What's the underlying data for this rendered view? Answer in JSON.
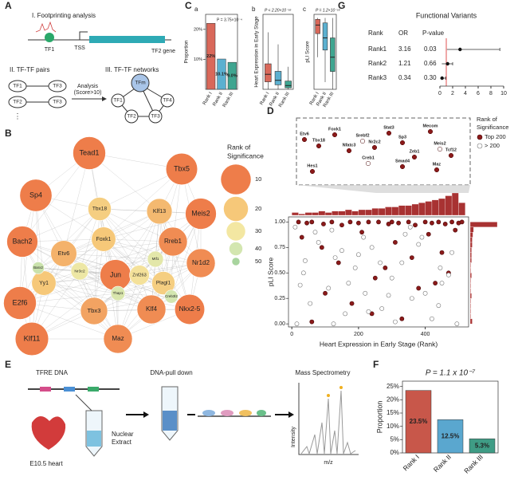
{
  "panel_labels": [
    "A",
    "B",
    "C",
    "D",
    "E",
    "F",
    "G"
  ],
  "footprinting": {
    "title": "I. Footprinting analysis",
    "tf": "TF1",
    "tss": "TSS",
    "gene": "TF2 gene"
  },
  "pairs": {
    "title": "II. TF-TF pairs",
    "rows": [
      [
        "TF1",
        "TF3"
      ],
      [
        "TF2",
        "TF3"
      ]
    ],
    "more": "⋮",
    "analysis": [
      "Analysis",
      "(Score>10)"
    ]
  },
  "networks": {
    "title": "III. TF-TF networks",
    "nodes": [
      "TFm",
      "TF1",
      "TF4",
      "TF2",
      "TF3"
    ]
  },
  "network": {
    "nodes": [
      {
        "label": "Tead1",
        "rank": 5
      },
      {
        "label": "Tbx5",
        "rank": 7
      },
      {
        "label": "Sp4",
        "rank": 6
      },
      {
        "label": "Klf13",
        "rank": 18
      },
      {
        "label": "Tbx18",
        "rank": 22
      },
      {
        "label": "Meis2",
        "rank": 8
      },
      {
        "label": "Bach2",
        "rank": 8
      },
      {
        "label": "Foxk1",
        "rank": 20
      },
      {
        "label": "Rreb1",
        "rank": 12
      },
      {
        "label": "Etv6",
        "rank": 17
      },
      {
        "label": "Yy1",
        "rank": 20
      },
      {
        "label": "Jun",
        "rank": 8
      },
      {
        "label": "Znf263",
        "rank": 28
      },
      {
        "label": "Nr3c2",
        "rank": 32
      },
      {
        "label": "Nr1d2",
        "rank": 12
      },
      {
        "label": "Plagl1",
        "rank": 22
      },
      {
        "label": "Mtf1",
        "rank": 35
      },
      {
        "label": "E2f6",
        "rank": 5
      },
      {
        "label": "Tbx3",
        "rank": 15
      },
      {
        "label": "Klf4",
        "rank": 12
      },
      {
        "label": "Nkx2-5",
        "rank": 10
      },
      {
        "label": "Klf11",
        "rank": 4
      },
      {
        "label": "Maz",
        "rank": 12
      },
      {
        "label": "Thap1",
        "rank": 38
      },
      {
        "label": "Creb3l2",
        "rank": 40
      },
      {
        "label": "Barx2",
        "rank": 42
      }
    ],
    "legend": {
      "title": [
        "Rank of",
        "Significance"
      ],
      "ranks": [
        10,
        20,
        30,
        40,
        50
      ],
      "colors": [
        "#ee7d4a",
        "#f6c879",
        "#f3e7a2",
        "#d3e6b0",
        "#a8d49e"
      ]
    }
  },
  "pulldown": {
    "dna": "TFRE DNA",
    "heart": "E10.5 heart",
    "extract": [
      "Nuclear",
      "Extract"
    ],
    "pull": "DNA-pull down",
    "ms": "Mass Spectrometry",
    "ylabel": "Intensity",
    "xlabel": "m/z"
  },
  "chart_data": [
    {
      "type": "bar",
      "label": "a",
      "ylabel": "Proportion",
      "annotation": "P = 3.75×10⁻⁴",
      "categories": [
        "Rank I",
        "Rank II",
        "Rank III"
      ],
      "values": [
        22,
        10.1,
        9.0
      ],
      "value_labels": [
        "22%",
        "10.1%",
        "9.0%"
      ],
      "colors": [
        "#d9685a",
        "#5bb0d0",
        "#3fa590"
      ],
      "ylim": [
        0,
        25
      ],
      "yticks": [
        {
          "value": 10,
          "label": "10%"
        },
        {
          "value": 20,
          "label": "20%"
        }
      ]
    },
    {
      "type": "box",
      "label": "b",
      "ylabel": "Heart Expression in Early Stage",
      "annotation": "P < 2.20×10⁻¹⁶",
      "categories": [
        "Rank I",
        "Rank II",
        "Rank III"
      ],
      "boxes": [
        {
          "min": 0,
          "q1": 50,
          "median": 100,
          "q3": 170,
          "max": 380
        },
        {
          "min": 0,
          "q1": 30,
          "median": 60,
          "q3": 120,
          "max": 300
        },
        {
          "min": 0,
          "q1": 10,
          "median": 25,
          "q3": 55,
          "max": 150
        }
      ],
      "colors": [
        "#d9685a",
        "#5bb0d0",
        "#3fa590"
      ],
      "ylim": [
        0,
        500
      ]
    },
    {
      "type": "box",
      "label": "c",
      "ylabel": "pLI Score",
      "annotation": "P = 1.2×10⁻¹⁶",
      "categories": [
        "Rank I",
        "Rank II",
        "Rank III"
      ],
      "boxes": [
        {
          "min": 0.45,
          "q1": 0.78,
          "median": 0.9,
          "q3": 0.98,
          "max": 1.0
        },
        {
          "min": 0.1,
          "q1": 0.55,
          "median": 0.72,
          "q3": 0.93,
          "max": 1.0
        },
        {
          "min": 0,
          "q1": 0.25,
          "median": 0.45,
          "q3": 0.72,
          "max": 1.0
        }
      ],
      "colors": [
        "#d9685a",
        "#5bb0d0",
        "#3fa590"
      ],
      "ylim": [
        0,
        1.05
      ]
    },
    {
      "type": "scatter",
      "xlabel": "Heart Expression in Early Stage (Rank)",
      "ylabel": "pLI Score",
      "xlim": [
        -10,
        530
      ],
      "ylim": [
        -0.03,
        1.05
      ],
      "xticks": [
        0,
        200,
        400
      ],
      "yticks": [
        {
          "value": 0,
          "label": "0.00"
        },
        {
          "value": 0.25,
          "label": "0.25"
        },
        {
          "value": 0.5,
          "label": "0.50"
        },
        {
          "value": 0.75,
          "label": "0.75"
        },
        {
          "value": 1,
          "label": "1.00"
        }
      ],
      "legend_title": [
        "Rank of",
        "Significance"
      ],
      "series": [
        {
          "name": "Top 200",
          "color": "#8b1a1a",
          "edgecolor": "#4a0808",
          "x": [
            20,
            45,
            60,
            95,
            120,
            150,
            175,
            200,
            230,
            260,
            290,
            300,
            320,
            350,
            370,
            400,
            420,
            440,
            460,
            480,
            500,
            510,
            30,
            90,
            140,
            210,
            250,
            310,
            360,
            410,
            450,
            490,
            100,
            180,
            280,
            380,
            470,
            60,
            240,
            330,
            430
          ],
          "values": [
            1.0,
            0.99,
            1.0,
            0.98,
            1.0,
            0.97,
            1.0,
            0.99,
            1.0,
            1.0,
            0.98,
            1.0,
            0.99,
            1.0,
            0.97,
            1.0,
            0.99,
            1.0,
            0.98,
            1.0,
            0.99,
            1.0,
            0.85,
            0.75,
            0.6,
            0.9,
            0.45,
            0.8,
            0.65,
            0.88,
            0.7,
            0.92,
            0.3,
            0.2,
            0.55,
            0.35,
            0.5,
            0.02,
            0.1,
            0.05,
            0.4
          ]
        },
        {
          "name": "> 200",
          "color": "#ffffff",
          "edgecolor": "#777777",
          "x": [
            10,
            35,
            55,
            80,
            110,
            130,
            160,
            190,
            220,
            240,
            270,
            300,
            330,
            360,
            390,
            420,
            450,
            480,
            15,
            70,
            125,
            170,
            215,
            265,
            310,
            355,
            400,
            445,
            495,
            40,
            150,
            230,
            340,
            440,
            25,
            120,
            200,
            290,
            380,
            470
          ],
          "values": [
            0.95,
            0.5,
            0.2,
            0.8,
            0.35,
            0.65,
            0.1,
            0.55,
            0.3,
            0.75,
            0.15,
            0.45,
            0.6,
            0.25,
            0.85,
            0.05,
            0.4,
            0.7,
            0.0,
            0.9,
            0.0,
            0.4,
            0.85,
            0.6,
            0.02,
            0.95,
            0.3,
            0.55,
            0.0,
            0.62,
            0.72,
            0.12,
            0.88,
            0.18,
            0.38,
            0.92,
            0.68,
            0.28,
            0.78,
            0.48
          ]
        }
      ],
      "hist_color": "#a83232",
      "top_hist": {
        "bins": [
          0,
          20,
          40,
          60,
          80,
          100,
          120,
          140,
          160,
          180,
          200,
          220,
          240,
          260,
          280,
          300,
          320,
          340,
          360,
          380,
          400,
          420,
          440,
          460,
          480,
          500,
          520
        ],
        "counts": [
          2,
          1,
          2,
          2,
          3,
          2,
          3,
          3,
          4,
          3,
          4,
          4,
          5,
          5,
          6,
          6,
          7,
          7,
          8,
          9,
          10,
          11,
          12,
          14,
          16,
          9
        ]
      },
      "right_hist": {
        "bins": [
          0,
          0.05,
          0.1,
          0.15,
          0.2,
          0.25,
          0.3,
          0.35,
          0.4,
          0.45,
          0.5,
          0.55,
          0.6,
          0.65,
          0.7,
          0.75,
          0.8,
          0.85,
          0.9,
          0.95,
          1.0
        ],
        "counts": [
          3,
          1,
          1,
          1,
          1,
          2,
          1,
          1,
          1,
          2,
          1,
          1,
          2,
          2,
          2,
          3,
          3,
          4,
          5,
          40
        ]
      },
      "inset_labels": [
        "Etv6",
        "Tbx18",
        "Foxk1",
        "Nfatc3",
        "Srebf2",
        "Nr2c2",
        "Stat3",
        "Sp3",
        "Mecom",
        "Meis2",
        "Tcf12",
        "Zeb1",
        "Smad4",
        "Maz",
        "Creb1",
        "Hes1"
      ]
    },
    {
      "type": "bar",
      "ylabel": "Proportion",
      "annotation": "P = 1.1 x 10⁻⁷",
      "categories": [
        "Rank I",
        "Rank II",
        "Rank III"
      ],
      "values": [
        23.5,
        12.5,
        5.3
      ],
      "value_labels": [
        "23.5%",
        "12.5%",
        "5.3%"
      ],
      "colors": [
        "#c8574a",
        "#5aa7cf",
        "#3f9c85"
      ],
      "ylim": [
        0,
        27
      ],
      "yticks": [
        {
          "value": 0,
          "label": "0%"
        },
        {
          "value": 5,
          "label": "5%"
        },
        {
          "value": 10,
          "label": "10%"
        },
        {
          "value": 15,
          "label": "15%"
        },
        {
          "value": 20,
          "label": "20%"
        },
        {
          "value": 25,
          "label": "25%"
        }
      ]
    },
    {
      "type": "forest",
      "title": "Functional Variants",
      "columns": [
        "Rank",
        "OR",
        "P-value"
      ],
      "categories": [
        "Rank1",
        "Rank2",
        "Rank3"
      ],
      "values": [
        3.16,
        1.21,
        0.34
      ],
      "p_values": [
        "0.03",
        "0.66",
        "0.30"
      ],
      "ci": [
        [
          1.1,
          9.4
        ],
        [
          0.3,
          2.0
        ],
        [
          0.05,
          0.9
        ]
      ],
      "ref_line": 1,
      "xlim": [
        0,
        10
      ],
      "xticks": [
        0,
        2,
        4,
        6,
        8,
        10
      ]
    }
  ]
}
